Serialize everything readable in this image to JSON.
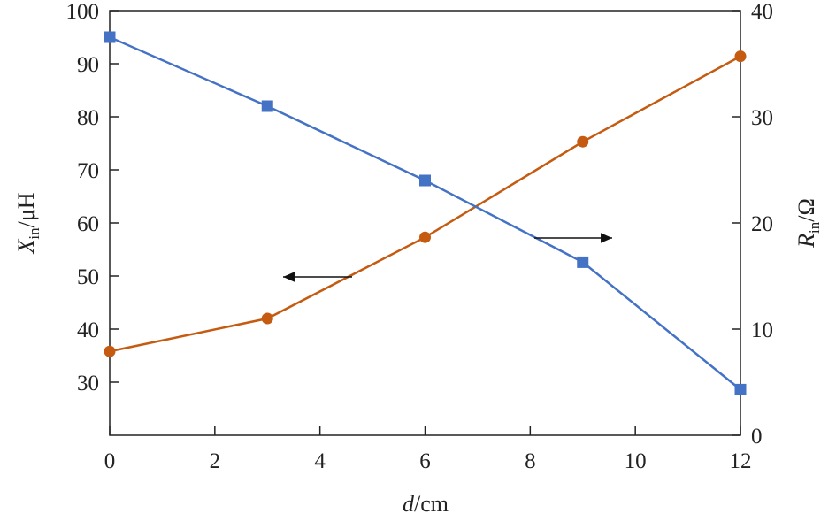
{
  "chart_data": {
    "type": "line",
    "x": [
      0,
      3,
      6,
      9,
      12
    ],
    "xlim": [
      0,
      12
    ],
    "xticks": [
      0,
      2,
      4,
      6,
      8,
      10,
      12
    ],
    "xlabel": {
      "italic": "d",
      "rest": "/cm"
    },
    "left_axis": {
      "ylim": [
        20,
        100
      ],
      "ticks": [
        30,
        40,
        50,
        60,
        70,
        80,
        90,
        100
      ],
      "label": {
        "main": "X",
        "sub": "in",
        "rest": "/μH"
      }
    },
    "right_axis": {
      "ylim": [
        0,
        40
      ],
      "ticks": [
        0,
        10,
        20,
        30,
        40
      ],
      "label": {
        "main": "R",
        "sub": "in",
        "rest": "/Ω"
      }
    },
    "series": [
      {
        "key": "xin",
        "axis": "left",
        "color": "#c55a11",
        "marker": "circle",
        "values": [
          35.8,
          42.0,
          57.3,
          75.3,
          91.4
        ]
      },
      {
        "key": "rin",
        "axis": "right",
        "color": "#4472c4",
        "marker": "square",
        "values": [
          37.5,
          31.0,
          24.0,
          16.3,
          4.3
        ]
      }
    ],
    "annotations": [
      {
        "type": "arrow",
        "direction": "left",
        "target_axis": "left"
      },
      {
        "type": "arrow",
        "direction": "right",
        "target_axis": "right"
      }
    ],
    "grid": false,
    "legend": "none"
  }
}
